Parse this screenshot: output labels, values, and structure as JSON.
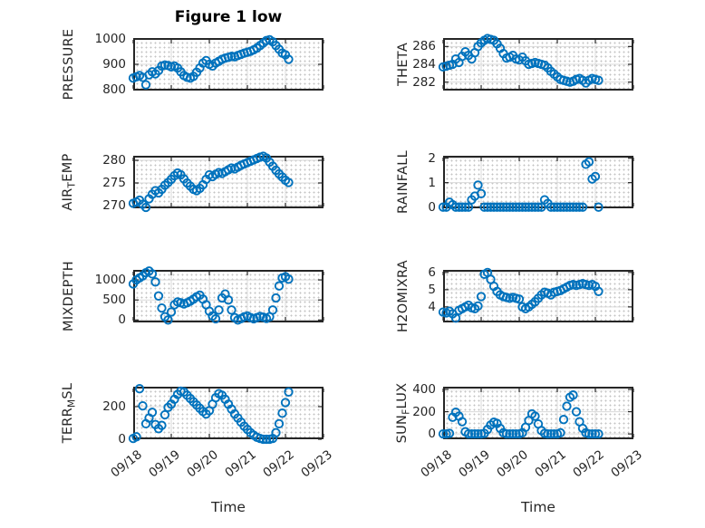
{
  "figure": {
    "title": "Figure 1 low",
    "xlabel": "Time",
    "background_color": "#ffffff",
    "marker_color": "#0072BD",
    "axis_color": "#262626",
    "grid_color": "#d9d9d9",
    "minor_grid_color": "#c3c3c3",
    "xtick_labels": [
      "09/18",
      "09/19",
      "09/20",
      "09/21",
      "09/22",
      "09/23"
    ]
  },
  "chart_data": {
    "type": "scatter",
    "title": "Figure 1 low",
    "xlabel": "Time",
    "marker": "open-circle",
    "marker_color": "#0072BD",
    "grid": "major-solid-minor-dotted",
    "layout": "4 rows x 2 columns",
    "xtick_labels": [
      "09/18",
      "09/19",
      "09/20",
      "09/21",
      "09/22",
      "09/23"
    ],
    "xlim_days": [
      0,
      5
    ],
    "x_hours": [
      0,
      2,
      4,
      6,
      8,
      10,
      12,
      14,
      16,
      18,
      20,
      22,
      24,
      26,
      28,
      30,
      32,
      34,
      36,
      38,
      40,
      42,
      44,
      46,
      48,
      50,
      52,
      54,
      56,
      58,
      60,
      62,
      64,
      66,
      68,
      70,
      72,
      74,
      76,
      78,
      80,
      82,
      84,
      86,
      88,
      90,
      92,
      94,
      96,
      98
    ],
    "subplots": [
      {
        "id": "pressure",
        "ylabel": "PRESSURE",
        "ylabel_parts": [
          {
            "text": "PRESSURE",
            "sub": false
          }
        ],
        "col": 0,
        "row": 0,
        "yticks": [
          800,
          900,
          1000
        ],
        "ylim": [
          795,
          1005
        ],
        "y": [
          845,
          850,
          855,
          848,
          818,
          858,
          870,
          862,
          875,
          893,
          897,
          895,
          890,
          893,
          885,
          870,
          855,
          848,
          845,
          852,
          868,
          885,
          905,
          915,
          900,
          893,
          905,
          912,
          920,
          925,
          928,
          932,
          930,
          935,
          940,
          945,
          948,
          952,
          958,
          965,
          975,
          985,
          995,
          998,
          990,
          975,
          960,
          945,
          938,
          920
        ]
      },
      {
        "id": "theta",
        "ylabel": "THETA",
        "ylabel_parts": [
          {
            "text": "THETA",
            "sub": false
          }
        ],
        "col": 1,
        "row": 0,
        "yticks": [
          282,
          284,
          286
        ],
        "ylim": [
          281.05,
          286.95
        ],
        "y": [
          283.7,
          283.8,
          283.9,
          284.0,
          284.6,
          284.2,
          284.9,
          285.4,
          285.0,
          284.6,
          285.3,
          286.0,
          286.4,
          286.7,
          286.9,
          286.8,
          286.7,
          286.3,
          285.8,
          285.2,
          284.7,
          284.8,
          285.0,
          284.6,
          284.5,
          284.8,
          284.4,
          284.0,
          284.1,
          284.2,
          284.1,
          284.0,
          283.9,
          283.6,
          283.2,
          282.9,
          282.6,
          282.3,
          282.2,
          282.1,
          282.0,
          282.1,
          282.3,
          282.4,
          282.2,
          281.9,
          282.2,
          282.4,
          282.3,
          282.2
        ]
      },
      {
        "id": "air_temp",
        "ylabel": "AIR_TEMP",
        "ylabel_parts": [
          {
            "text": "AIR",
            "sub": false
          },
          {
            "text": "T",
            "sub": true
          },
          {
            "text": "EMP",
            "sub": false
          }
        ],
        "col": 0,
        "row": 1,
        "yticks": [
          270,
          275,
          280
        ],
        "ylim": [
          269.4,
          281.0
        ],
        "y": [
          270.5,
          270.8,
          271.2,
          270.3,
          269.6,
          271.5,
          272.5,
          273.3,
          272.8,
          273.6,
          274.5,
          275.1,
          275.8,
          276.6,
          277.2,
          276.8,
          275.9,
          275.0,
          274.3,
          273.6,
          273.3,
          273.8,
          274.6,
          275.8,
          276.8,
          276.4,
          276.9,
          277.3,
          277.1,
          277.5,
          277.9,
          278.3,
          278.1,
          278.5,
          278.9,
          279.2,
          279.5,
          279.8,
          280.1,
          280.4,
          280.7,
          280.9,
          280.5,
          279.6,
          278.7,
          277.8,
          277.0,
          276.3,
          275.6,
          275.1
        ]
      },
      {
        "id": "rainfall",
        "ylabel": "RAINFALL",
        "ylabel_parts": [
          {
            "text": "RAINFALL",
            "sub": false
          }
        ],
        "col": 1,
        "row": 1,
        "yticks": [
          0,
          1,
          2
        ],
        "ylim": [
          -0.05,
          2.1
        ],
        "y": [
          0,
          0,
          0.2,
          0.1,
          0,
          0,
          0,
          0,
          0,
          0.3,
          0.45,
          0.9,
          0.55,
          0,
          0,
          0,
          0,
          0,
          0,
          0,
          0,
          0,
          0,
          0,
          0,
          0,
          0,
          0,
          0,
          0,
          0,
          0,
          0.3,
          0.15,
          0,
          0,
          0,
          0,
          0,
          0,
          0,
          0,
          0,
          0,
          0,
          1.75,
          1.85,
          1.15,
          1.25,
          0
        ]
      },
      {
        "id": "mixdepth",
        "ylabel": "MIXDEPTH",
        "ylabel_parts": [
          {
            "text": "MIXDEPTH",
            "sub": false
          }
        ],
        "col": 0,
        "row": 2,
        "yticks": [
          0,
          500,
          1000
        ],
        "ylim": [
          -60,
          1250
        ],
        "y": [
          900,
          1000,
          1050,
          1100,
          1180,
          1220,
          1150,
          950,
          600,
          300,
          80,
          0,
          200,
          380,
          450,
          430,
          400,
          430,
          470,
          520,
          580,
          620,
          520,
          380,
          220,
          100,
          30,
          250,
          550,
          650,
          500,
          250,
          60,
          0,
          34,
          80,
          100,
          60,
          30,
          60,
          90,
          70,
          40,
          80,
          250,
          550,
          850,
          1050,
          1080,
          1020
        ]
      },
      {
        "id": "h2omixra",
        "ylabel": "H2OMIXRA",
        "ylabel_parts": [
          {
            "text": "H2OMIXRA",
            "sub": false
          }
        ],
        "col": 1,
        "row": 2,
        "yticks": [
          4,
          5,
          6
        ],
        "ylim": [
          3.1,
          6.15
        ],
        "y": [
          3.7,
          3.65,
          3.75,
          3.6,
          3.35,
          3.8,
          3.9,
          4.0,
          4.1,
          3.95,
          3.9,
          4.05,
          4.6,
          5.9,
          6.0,
          5.6,
          5.2,
          4.9,
          4.7,
          4.6,
          4.55,
          4.5,
          4.55,
          4.5,
          4.45,
          4.0,
          3.9,
          4.0,
          4.15,
          4.3,
          4.5,
          4.7,
          4.85,
          4.8,
          4.7,
          4.85,
          4.9,
          4.95,
          5.05,
          5.15,
          5.25,
          5.3,
          5.25,
          5.3,
          5.35,
          5.3,
          5.25,
          5.3,
          5.2,
          4.9
        ]
      },
      {
        "id": "terr_msl",
        "ylabel": "TERR_MSL",
        "ylabel_parts": [
          {
            "text": "TERR",
            "sub": false
          },
          {
            "text": "M",
            "sub": true
          },
          {
            "text": "SL",
            "sub": false
          }
        ],
        "col": 0,
        "row": 3,
        "yticks": [
          0,
          200
        ],
        "ylim": [
          0,
          322
        ],
        "y": [
          5,
          15,
          310,
          205,
          95,
          130,
          165,
          90,
          65,
          85,
          150,
          195,
          215,
          245,
          275,
          295,
          290,
          270,
          250,
          230,
          210,
          190,
          170,
          155,
          175,
          215,
          255,
          280,
          270,
          245,
          215,
          185,
          155,
          130,
          105,
          80,
          60,
          40,
          25,
          12,
          5,
          0,
          0,
          0,
          5,
          40,
          95,
          160,
          225,
          290
        ]
      },
      {
        "id": "sun_flux",
        "ylabel": "SUN_FLUX",
        "ylabel_parts": [
          {
            "text": "SUN",
            "sub": false
          },
          {
            "text": "F",
            "sub": true
          },
          {
            "text": "LUX",
            "sub": false
          }
        ],
        "col": 1,
        "row": 3,
        "yticks": [
          0,
          200,
          400
        ],
        "ylim": [
          -48,
          425
        ],
        "y": [
          0,
          0,
          5,
          150,
          195,
          160,
          110,
          20,
          0,
          0,
          0,
          0,
          0,
          5,
          40,
          80,
          105,
          95,
          50,
          10,
          0,
          0,
          0,
          0,
          0,
          10,
          60,
          120,
          180,
          160,
          90,
          30,
          5,
          0,
          0,
          0,
          0,
          10,
          130,
          250,
          330,
          350,
          200,
          110,
          50,
          10,
          0,
          0,
          0,
          0
        ]
      }
    ]
  }
}
